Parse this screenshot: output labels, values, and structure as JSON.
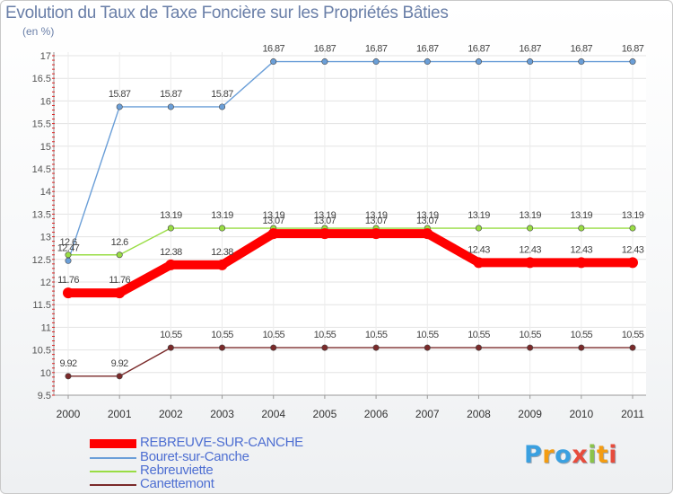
{
  "chart_data": {
    "type": "line",
    "title": "Evolution du Taux de Taxe Foncière sur les Propriétés Bâties",
    "ylabel": "(en %)",
    "xlabel": "",
    "categories": [
      "2000",
      "2001",
      "2002",
      "2003",
      "2004",
      "2005",
      "2006",
      "2007",
      "2008",
      "2009",
      "2010",
      "2011"
    ],
    "ylim": [
      9.5,
      17
    ],
    "yticks": [
      "9.5",
      "10",
      "10.5",
      "11",
      "11.5",
      "12",
      "12.5",
      "13",
      "13.5",
      "14",
      "14.5",
      "15",
      "15.5",
      "16",
      "16.5",
      "17"
    ],
    "grid": true,
    "legend_position": "bottom-left",
    "series": [
      {
        "name": "REBREUVE-SUR-CANCHE",
        "color": "#ff0000",
        "values": [
          11.76,
          11.76,
          12.38,
          12.38,
          13.07,
          13.07,
          13.07,
          13.07,
          12.43,
          12.43,
          12.43,
          12.43
        ],
        "labels": [
          "11.76",
          "11.76",
          "12.38",
          "12.38",
          "13.07",
          "13.07",
          "13.07",
          "13.07",
          "12.43",
          "12.43",
          "12.43",
          "12.43"
        ]
      },
      {
        "name": "Bouret-sur-Canche",
        "color": "#6b9fd8",
        "values": [
          12.47,
          15.87,
          15.87,
          15.87,
          16.87,
          16.87,
          16.87,
          16.87,
          16.87,
          16.87,
          16.87,
          16.87
        ],
        "labels": [
          "12.47",
          "15.87",
          "15.87",
          "15.87",
          "16.87",
          "16.87",
          "16.87",
          "16.87",
          "16.87",
          "16.87",
          "16.87",
          "16.87"
        ]
      },
      {
        "name": "Rebreuviette",
        "color": "#99dd44",
        "values": [
          12.6,
          12.6,
          13.19,
          13.19,
          13.19,
          13.19,
          13.19,
          13.19,
          13.19,
          13.19,
          13.19,
          13.19
        ],
        "labels": [
          "12.6",
          "12.6",
          "13.19",
          "13.19",
          "13.19",
          "13.19",
          "13.19",
          "13.19",
          "13.19",
          "13.19",
          "13.19",
          "13.19"
        ]
      },
      {
        "name": "Canettemont",
        "color": "#7a2a2a",
        "values": [
          9.92,
          9.92,
          10.55,
          10.55,
          10.55,
          10.55,
          10.55,
          10.55,
          10.55,
          10.55,
          10.55,
          10.55
        ],
        "labels": [
          "9.92",
          "9.92",
          "10.55",
          "10.55",
          "10.55",
          "10.55",
          "10.55",
          "10.55",
          "10.55",
          "10.55",
          "10.55",
          "10.55"
        ]
      }
    ]
  },
  "legend": {
    "items": [
      {
        "label": "REBREUVE-SUR-CANCHE",
        "color": "#ff0000"
      },
      {
        "label": "Bouret-sur-Canche",
        "color": "#6b9fd8"
      },
      {
        "label": "Rebreuviette",
        "color": "#99dd44"
      },
      {
        "label": "Canettemont",
        "color": "#7a2a2a"
      }
    ]
  },
  "logo": {
    "letters": [
      "P",
      "r",
      "o",
      "x",
      "i",
      "t",
      "i"
    ],
    "colors": [
      "#3aa0e0",
      "#f39c12",
      "#3aa0e0",
      "#e74c3c",
      "#8bc34a",
      "#f39c12",
      "#e74c3c"
    ]
  }
}
